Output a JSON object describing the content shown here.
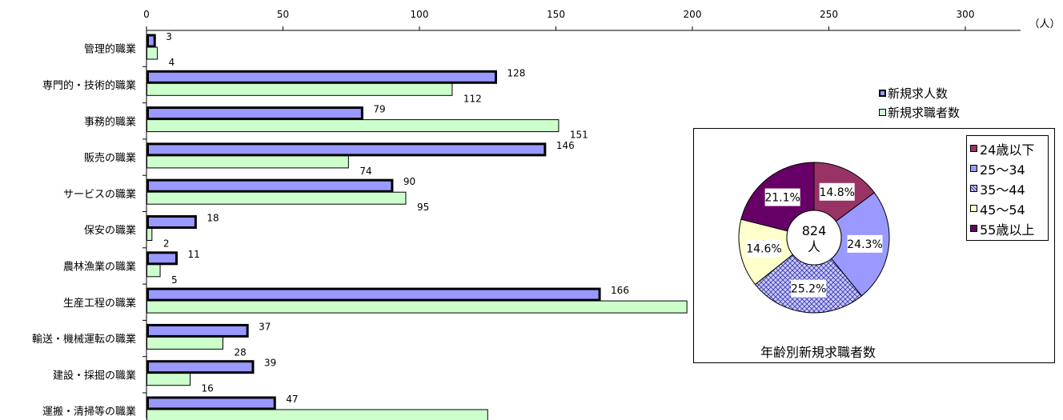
{
  "chart_data": [
    {
      "type": "bar",
      "orientation": "horizontal",
      "categories": [
        "管理的職業",
        "専門的・技術的職業",
        "事務的職業",
        "販売の職業",
        "サービスの職業",
        "保安の職業",
        "農林漁業の職業",
        "生産工程の職業",
        "輸送・機械運転の職業",
        "建設・採掘の職業",
        "運搬・清掃等の職業"
      ],
      "series": [
        {
          "name": "新規求人数",
          "values": [
            3,
            128,
            79,
            146,
            90,
            18,
            11,
            166,
            37,
            39,
            47
          ],
          "color": "#9999ff"
        },
        {
          "name": "新規求職者数",
          "values": [
            4,
            112,
            151,
            74,
            95,
            2,
            5,
            198,
            28,
            16,
            125
          ],
          "color": "#ccffcc"
        }
      ],
      "xlim": [
        0,
        300
      ],
      "xticks": [
        0,
        50,
        100,
        150,
        200,
        250,
        300
      ],
      "unit": "（人）",
      "legend": "top-right"
    },
    {
      "type": "pie",
      "title": "年齢別新規求職者数",
      "center_label": "824\n人",
      "slices": [
        {
          "label": "24歳以下",
          "value": 14.8,
          "display": "14.8%",
          "color": "#993366"
        },
        {
          "label": "25～34",
          "value": 24.3,
          "display": "24.3%",
          "color": "#9999ff"
        },
        {
          "label": "35～44",
          "value": 25.2,
          "display": "25.2%",
          "color": "#ccccff",
          "pattern": "crosshatch"
        },
        {
          "label": "45～54",
          "value": 14.6,
          "display": "14.6%",
          "color": "#ffffcc"
        },
        {
          "label": "55歳以上",
          "value": 21.1,
          "display": "21.1%",
          "color": "#660066"
        }
      ],
      "legend": "right"
    }
  ]
}
